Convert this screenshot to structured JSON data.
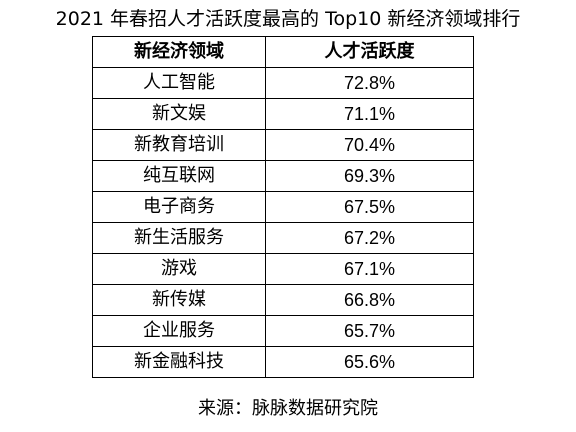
{
  "title": "2021 年春招人才活跃度最高的 Top10 新经济领域排行",
  "table": {
    "headers": [
      "新经济领域",
      "人才活跃度"
    ],
    "rows": [
      {
        "field": "人工智能",
        "value": "72.8%"
      },
      {
        "field": "新文娱",
        "value": "71.1%"
      },
      {
        "field": "新教育培训",
        "value": "70.4%"
      },
      {
        "field": "纯互联网",
        "value": "69.3%"
      },
      {
        "field": "电子商务",
        "value": "67.5%"
      },
      {
        "field": "新生活服务",
        "value": "67.2%"
      },
      {
        "field": "游戏",
        "value": "67.1%"
      },
      {
        "field": "新传媒",
        "value": "66.8%"
      },
      {
        "field": "企业服务",
        "value": "65.7%"
      },
      {
        "field": "新金融科技",
        "value": "65.6%"
      }
    ]
  },
  "source": "来源：脉脉数据研究院"
}
